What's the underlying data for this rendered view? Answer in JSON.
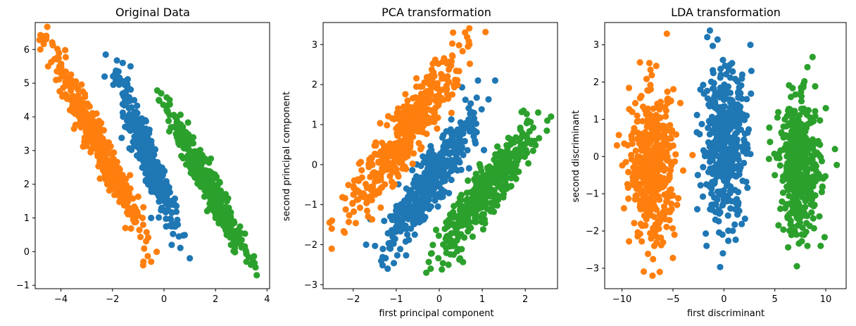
{
  "chart_data": [
    {
      "type": "scatter",
      "title": "Original Data",
      "xlabel": "",
      "ylabel": "",
      "xlim": [
        -5.0,
        4.1
      ],
      "ylim": [
        -1.1,
        6.8
      ],
      "xticks": [
        -4,
        -2,
        0,
        2,
        4
      ],
      "yticks": [
        -1,
        0,
        1,
        2,
        3,
        4,
        5,
        6
      ],
      "grid": false,
      "series_generation": [
        {
          "color": "#1f77b4",
          "n": 420,
          "x": [
            -2.0,
            0.7
          ],
          "y": [
            0.2,
            5.6
          ],
          "spread": 0.17
        },
        {
          "color": "#ff7f0e",
          "n": 460,
          "x": [
            -4.6,
            -0.5
          ],
          "y": [
            0.0,
            6.4
          ],
          "spread": 0.18
        },
        {
          "color": "#2ca02c",
          "n": 420,
          "x": [
            0.0,
            3.5
          ],
          "y": [
            -0.6,
            4.5
          ],
          "spread": 0.17
        }
      ],
      "series": [
        {
          "color": "#1f77b4",
          "points": [
            [
              -1.6,
              5.6
            ],
            [
              -1.3,
              5.5
            ],
            [
              -0.5,
              1.0
            ],
            [
              0.3,
              0.2
            ],
            [
              1.0,
              -0.2
            ],
            [
              -1.5,
              4.0
            ],
            [
              -0.9,
              3.0
            ],
            [
              -0.3,
              2.2
            ]
          ]
        },
        {
          "color": "#ff7f0e",
          "points": [
            [
              -4.6,
              6.4
            ],
            [
              -4.8,
              6.0
            ],
            [
              -4.5,
              5.5
            ],
            [
              -1.5,
              0.7
            ],
            [
              -0.5,
              -0.3
            ],
            [
              -0.8,
              -0.3
            ],
            [
              -3.2,
              3.8
            ],
            [
              -2.2,
              2.0
            ]
          ]
        },
        {
          "color": "#2ca02c",
          "points": [
            [
              -0.2,
              4.5
            ],
            [
              0.1,
              4.3
            ],
            [
              3.6,
              -0.7
            ],
            [
              3.2,
              -0.3
            ],
            [
              1.2,
              2.2
            ],
            [
              2.0,
              1.0
            ],
            [
              0.5,
              3.4
            ],
            [
              2.6,
              0.2
            ]
          ]
        }
      ]
    },
    {
      "type": "scatter",
      "title": "PCA transformation",
      "xlabel": "first principal component",
      "ylabel": "second principal component",
      "xlim": [
        -2.7,
        2.75
      ],
      "ylim": [
        -3.1,
        3.55
      ],
      "xticks": [
        -2,
        -1,
        0,
        1,
        2
      ],
      "yticks": [
        -3,
        -2,
        -1,
        0,
        1,
        2,
        3
      ],
      "grid": false,
      "series_generation": [
        {
          "color": "#1f77b4",
          "n": 420,
          "x": [
            -1.4,
            1.0
          ],
          "y": [
            -2.4,
            1.6
          ],
          "spread": 0.2
        },
        {
          "color": "#ff7f0e",
          "n": 460,
          "x": [
            -2.3,
            0.7
          ],
          "y": [
            -1.7,
            3.2
          ],
          "spread": 0.22
        },
        {
          "color": "#2ca02c",
          "n": 420,
          "x": [
            -0.1,
            2.3
          ],
          "y": [
            -2.5,
            1.2
          ],
          "spread": 0.2
        }
      ],
      "series": [
        {
          "color": "#1f77b4",
          "points": [
            [
              -1.2,
              -2.6
            ],
            [
              -1.7,
              -2.0
            ],
            [
              1.3,
              2.1
            ],
            [
              0.9,
              2.1
            ],
            [
              -0.2,
              -0.3
            ],
            [
              0.3,
              0.5
            ]
          ]
        },
        {
          "color": "#ff7f0e",
          "points": [
            [
              -2.5,
              -1.6
            ],
            [
              -2.5,
              -2.1
            ],
            [
              -2.2,
              -1.7
            ],
            [
              0.6,
              3.3
            ],
            [
              0.7,
              3.0
            ],
            [
              -1.0,
              0.9
            ]
          ]
        },
        {
          "color": "#2ca02c",
          "points": [
            [
              -0.3,
              -2.7
            ],
            [
              -0.2,
              -2.6
            ],
            [
              2.6,
              1.2
            ],
            [
              2.3,
              1.3
            ],
            [
              1.0,
              -0.6
            ],
            [
              1.5,
              0.3
            ]
          ]
        }
      ]
    },
    {
      "type": "scatter",
      "title": "LDA transformation",
      "xlabel": "first discriminant",
      "ylabel": "second discriminant",
      "xlim": [
        -11.7,
        12.0
      ],
      "ylim": [
        -3.55,
        3.6
      ],
      "xticks": [
        -10,
        -5,
        0,
        5,
        10
      ],
      "yticks": [
        -3,
        -2,
        -1,
        0,
        1,
        2,
        3
      ],
      "grid": false,
      "series_generation": [
        {
          "color": "#1f77b4",
          "n": 420,
          "x_center": 0.0,
          "x_spread": 1.1,
          "y_center": 0.35,
          "y_spread": 1.0
        },
        {
          "color": "#ff7f0e",
          "n": 460,
          "x_center": -7.0,
          "x_spread": 1.1,
          "y_center": -0.3,
          "y_spread": 1.0
        },
        {
          "color": "#2ca02c",
          "n": 420,
          "x_center": 7.5,
          "x_spread": 1.0,
          "y_center": -0.3,
          "y_spread": 0.9
        }
      ],
      "series": [
        {
          "color": "#1f77b4",
          "points": [
            [
              2.6,
              3.0
            ],
            [
              2.7,
              2.3
            ],
            [
              -1.7,
              -2.4
            ],
            [
              -0.1,
              -2.6
            ],
            [
              -2.3,
              1.8
            ],
            [
              1.8,
              2.2
            ]
          ]
        },
        {
          "color": "#ff7f0e",
          "points": [
            [
              -5.6,
              3.3
            ],
            [
              -10.5,
              0.3
            ],
            [
              -6.3,
              -3.1
            ],
            [
              -7.0,
              -3.2
            ],
            [
              -5.2,
              1.5
            ],
            [
              -9.0,
              1.2
            ]
          ]
        },
        {
          "color": "#2ca02c",
          "points": [
            [
              10.9,
              0.2
            ],
            [
              9.5,
              -2.4
            ],
            [
              8.2,
              2.4
            ],
            [
              8.2,
              -2.4
            ],
            [
              5.0,
              -0.5
            ],
            [
              10.0,
              1.3
            ]
          ]
        }
      ]
    }
  ]
}
